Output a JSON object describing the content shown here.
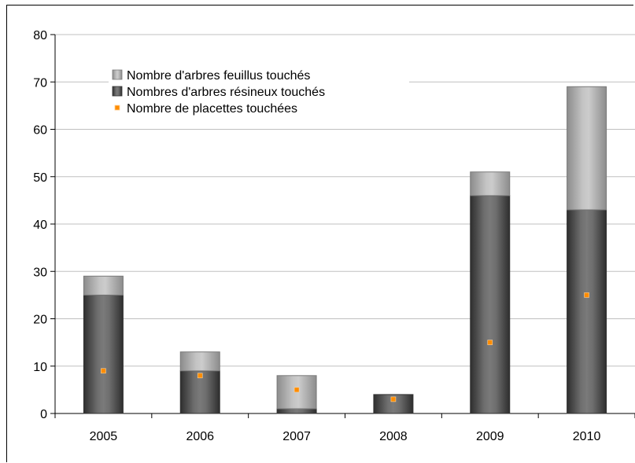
{
  "chart_data": {
    "type": "bar",
    "stacked": true,
    "categories": [
      "2005",
      "2006",
      "2007",
      "2008",
      "2009",
      "2010"
    ],
    "series": [
      {
        "name": "Nombres d'arbres résineux touchés",
        "kind": "bar",
        "color": "#5a5a5a",
        "values": [
          25,
          9,
          1,
          4,
          46,
          43
        ]
      },
      {
        "name": "Nombre d'arbres feuillus touchés",
        "kind": "bar",
        "color": "#b3b3b3",
        "values": [
          4,
          4,
          7,
          0,
          5,
          26
        ]
      },
      {
        "name": "Nombre de placettes touchées",
        "kind": "marker",
        "color": "#ff8c00",
        "values": [
          9,
          8,
          5,
          3,
          15,
          25
        ]
      }
    ],
    "ylim": [
      0,
      80
    ],
    "yticks": [
      0,
      10,
      20,
      30,
      40,
      50,
      60,
      70,
      80
    ],
    "grid": true,
    "legend": {
      "position": "top-left",
      "order": [
        "Nombre d'arbres feuillus touchés",
        "Nombres d'arbres résineux touchés",
        "Nombre de placettes touchées"
      ]
    },
    "title": "",
    "xlabel": "",
    "ylabel": ""
  }
}
